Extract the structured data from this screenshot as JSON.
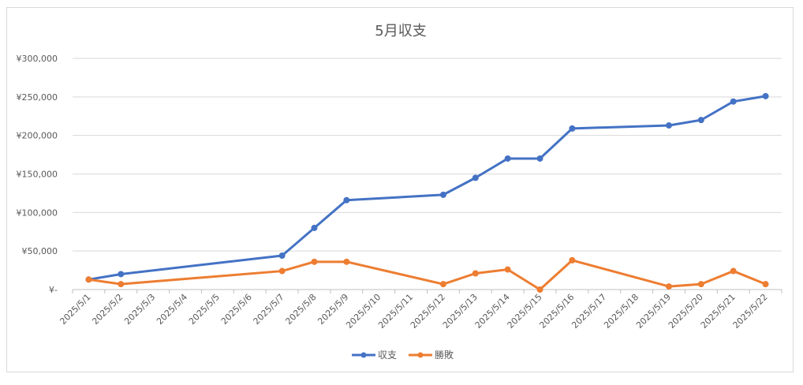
{
  "chart_data": {
    "type": "line",
    "title": "5月収支",
    "xlabel": "",
    "ylabel": "",
    "categories": [
      "2025/5/1",
      "2025/5/2",
      "2025/5/3",
      "2025/5/4",
      "2025/5/5",
      "2025/5/6",
      "2025/5/7",
      "2025/5/8",
      "2025/5/9",
      "2025/5/10",
      "2025/5/11",
      "2025/5/12",
      "2025/5/13",
      "2025/5/14",
      "2025/5/15",
      "2025/5/16",
      "2025/5/17",
      "2025/5/18",
      "2025/5/19",
      "2025/5/20",
      "2025/5/21",
      "2025/5/22"
    ],
    "y_tick_labels": [
      "¥-",
      "¥50,000",
      "¥100,000",
      "¥150,000",
      "¥200,000",
      "¥250,000",
      "¥300,000"
    ],
    "ylim": [
      0,
      300000
    ],
    "grid": true,
    "legend_position": "bottom",
    "series": [
      {
        "name": "収支",
        "color": "#4472c4",
        "x": [
          "2025/5/1",
          "2025/5/2",
          "2025/5/7",
          "2025/5/8",
          "2025/5/9",
          "2025/5/12",
          "2025/5/13",
          "2025/5/14",
          "2025/5/15",
          "2025/5/16",
          "2025/5/19",
          "2025/5/20",
          "2025/5/21",
          "2025/5/22"
        ],
        "values": [
          13000,
          20000,
          44000,
          80000,
          116000,
          123000,
          145000,
          170000,
          170000,
          209000,
          213000,
          220000,
          244000,
          251000
        ]
      },
      {
        "name": "勝敗",
        "color": "#ed7d31",
        "x": [
          "2025/5/1",
          "2025/5/2",
          "2025/5/7",
          "2025/5/8",
          "2025/5/9",
          "2025/5/12",
          "2025/5/13",
          "2025/5/14",
          "2025/5/15",
          "2025/5/16",
          "2025/5/19",
          "2025/5/20",
          "2025/5/21",
          "2025/5/22"
        ],
        "values": [
          13000,
          7000,
          24000,
          36000,
          36000,
          7000,
          21000,
          26000,
          0,
          38000,
          4000,
          7000,
          24000,
          7000
        ]
      }
    ]
  }
}
